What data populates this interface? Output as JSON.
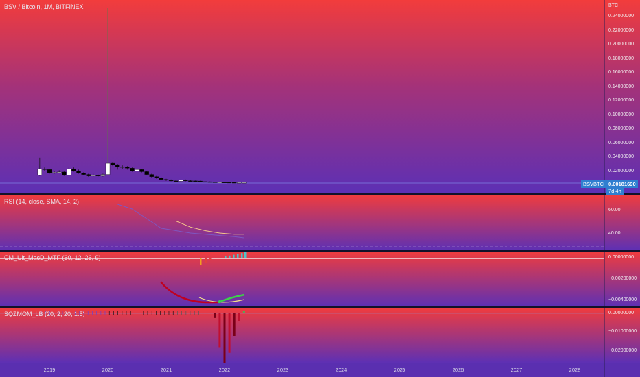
{
  "main": {
    "title": "BSV / Bitcoin, 1M, BITFINEX",
    "currency": "BTC",
    "yaxis": [
      "0.24000000",
      "0.22000000",
      "0.20000000",
      "0.18000000",
      "0.16000000",
      "0.14000000",
      "0.12000000",
      "0.10000000",
      "0.08000000",
      "0.06000000",
      "0.04000000",
      "0.02000000"
    ],
    "symbol_tag": "BSVBTC",
    "price_tag": "0.00181690",
    "countdown": "7d 4h"
  },
  "rsi": {
    "title": "RSI (14, close, SMA, 14, 2)",
    "yaxis": [
      "60.00",
      "40.00"
    ]
  },
  "macd": {
    "title": "CM_Ult_MacD_MTF (60, 12, 26, 9)",
    "yaxis": [
      "0.00000000",
      "−0.00200000",
      "−0.00400000"
    ]
  },
  "sqz": {
    "title": "SQZMOM_LB (20, 2, 20, 1.5)",
    "yaxis": [
      "0.00000000",
      "−0.01000000",
      "−0.02000000"
    ]
  },
  "timeline": [
    "2019",
    "2020",
    "2021",
    "2022",
    "2023",
    "2024",
    "2025",
    "2026",
    "2027",
    "2028"
  ],
  "colors": {
    "up": "#ffffff",
    "down": "#000000",
    "bg_top": "#f23c3c",
    "bg_bottom": "#5c30b5",
    "rsi_line": "#7e57c2",
    "rsi_ma": "#f5c48a",
    "macd_red": "#c00020",
    "macd_green": "#3dd14a"
  },
  "chart_data": [
    {
      "type": "line",
      "title": "BSV / Bitcoin, 1M, BITFINEX",
      "note": "candlestick",
      "x": [
        "2018-11",
        "2018-12",
        "2019-01",
        "2019-02",
        "2019-03",
        "2019-04",
        "2019-05",
        "2019-06",
        "2019-07",
        "2019-08",
        "2019-09",
        "2019-10",
        "2019-11",
        "2019-12",
        "2020-01",
        "2020-02",
        "2020-03",
        "2020-04",
        "2020-05",
        "2020-06",
        "2020-07",
        "2020-08",
        "2020-09",
        "2020-10",
        "2020-11",
        "2020-12",
        "2021-01",
        "2021-02",
        "2021-03",
        "2021-04",
        "2021-05",
        "2021-06",
        "2021-07",
        "2021-08",
        "2021-09",
        "2021-10",
        "2021-11",
        "2021-12",
        "2022-01",
        "2022-02",
        "2022-03",
        "2022-04",
        "2022-05"
      ],
      "open": [
        0.012,
        0.021,
        0.02,
        0.015,
        0.016,
        0.0165,
        0.012,
        0.021,
        0.018,
        0.015,
        0.013,
        0.011,
        0.012,
        0.011,
        0.013,
        0.029,
        0.027,
        0.024,
        0.024,
        0.022,
        0.018,
        0.02,
        0.017,
        0.013,
        0.01,
        0.008,
        0.006,
        0.005,
        0.004,
        0.0035,
        0.005,
        0.0042,
        0.004,
        0.0038,
        0.003,
        0.0028,
        0.0025,
        0.0022,
        0.0022,
        0.002,
        0.0019,
        0.0018,
        0.0018
      ],
      "close": [
        0.021,
        0.02,
        0.015,
        0.016,
        0.0165,
        0.012,
        0.021,
        0.018,
        0.015,
        0.013,
        0.011,
        0.012,
        0.011,
        0.013,
        0.029,
        0.027,
        0.024,
        0.024,
        0.022,
        0.018,
        0.02,
        0.017,
        0.013,
        0.01,
        0.008,
        0.006,
        0.005,
        0.004,
        0.0035,
        0.005,
        0.0042,
        0.004,
        0.0038,
        0.003,
        0.0028,
        0.0025,
        0.0022,
        0.0022,
        0.002,
        0.0019,
        0.0018,
        0.0018,
        0.0018169
      ],
      "high": [
        0.037,
        0.023,
        0.021,
        0.018,
        0.019,
        0.018,
        0.024,
        0.023,
        0.02,
        0.016,
        0.014,
        0.014,
        0.013,
        0.014,
        0.249,
        0.03,
        0.028,
        0.026,
        0.025,
        0.023,
        0.022,
        0.021,
        0.018,
        0.014,
        0.011,
        0.009,
        0.007,
        0.006,
        0.005,
        0.006,
        0.006,
        0.005,
        0.0045,
        0.0042,
        0.0035,
        0.0032,
        0.0028,
        0.0026,
        0.0024,
        0.0022,
        0.0021,
        0.002,
        0.0019
      ],
      "low": [
        0.011,
        0.018,
        0.014,
        0.014,
        0.015,
        0.011,
        0.011,
        0.017,
        0.014,
        0.012,
        0.01,
        0.01,
        0.01,
        0.01,
        0.012,
        0.025,
        0.02,
        0.021,
        0.02,
        0.017,
        0.017,
        0.016,
        0.012,
        0.009,
        0.007,
        0.005,
        0.004,
        0.0035,
        0.003,
        0.003,
        0.0035,
        0.0035,
        0.003,
        0.0027,
        0.0025,
        0.0022,
        0.002,
        0.0019,
        0.0018,
        0.0017,
        0.0016,
        0.0016,
        0.0017
      ],
      "ylim": [
        0,
        0.25
      ]
    },
    {
      "type": "line",
      "title": "RSI (14, close, SMA, 14, 2)",
      "x": [
        "2020-03",
        "2020-06",
        "2020-09",
        "2020-12",
        "2021-03",
        "2021-06",
        "2021-09",
        "2021-12",
        "2022-03",
        "2022-05"
      ],
      "series": [
        {
          "name": "RSI",
          "values": [
            64,
            60,
            52,
            44,
            42,
            40,
            39,
            38,
            37,
            36
          ]
        },
        {
          "name": "SMA",
          "values": [
            null,
            null,
            null,
            null,
            50,
            45,
            42,
            40,
            39,
            39
          ]
        }
      ],
      "ylim": [
        30,
        70
      ]
    },
    {
      "type": "bar",
      "title": "SQZMOM_LB (20, 2, 20, 1.5)",
      "categories": [
        "2021-11",
        "2021-12",
        "2022-01",
        "2022-02",
        "2022-03",
        "2022-04",
        "2022-05"
      ],
      "values": [
        -0.0025,
        -0.018,
        -0.0265,
        -0.021,
        -0.012,
        -0.004,
        0.0012
      ],
      "ylim": [
        -0.027,
        0.001
      ]
    }
  ]
}
